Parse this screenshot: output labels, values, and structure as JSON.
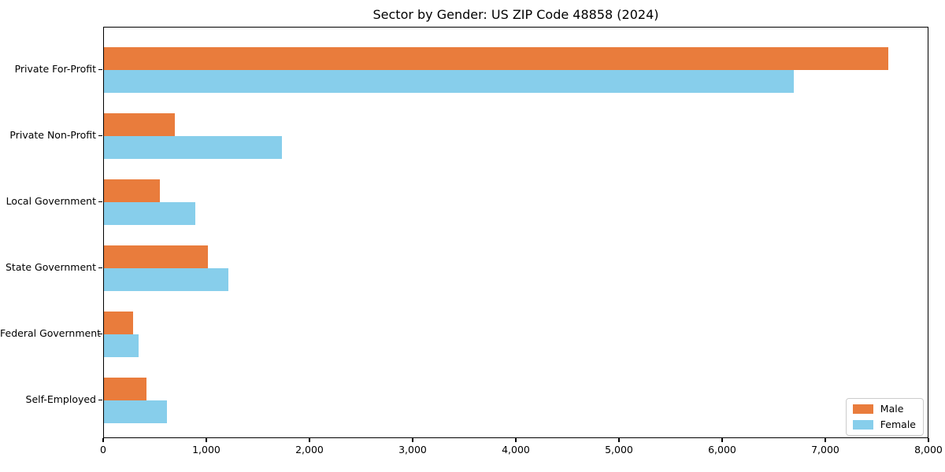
{
  "title": "Sector by Gender: US ZIP Code 48858 (2024)",
  "chart_data": {
    "type": "bar",
    "orientation": "horizontal",
    "title": "Sector by Gender: US ZIP Code 48858 (2024)",
    "categories": [
      "Private For-Profit",
      "Private Non-Profit",
      "Local Government",
      "State Government",
      "Federal Government",
      "Self-Employed"
    ],
    "series": [
      {
        "name": "Male",
        "color": "#e97c3c",
        "values": [
          7620,
          690,
          540,
          1010,
          280,
          410
        ]
      },
      {
        "name": "Female",
        "color": "#87ceeb",
        "values": [
          6700,
          1730,
          890,
          1210,
          340,
          610
        ]
      }
    ],
    "xlabel": "",
    "ylabel": "",
    "xlim": [
      0,
      8000
    ],
    "xticks": [
      0,
      1000,
      2000,
      3000,
      4000,
      5000,
      6000,
      7000,
      8000
    ],
    "xtick_labels": [
      "0",
      "1,000",
      "2,000",
      "3,000",
      "4,000",
      "5,000",
      "6,000",
      "7,000",
      "8,000"
    ],
    "grid": false,
    "legend_position": "lower right",
    "frame": "full-box"
  }
}
